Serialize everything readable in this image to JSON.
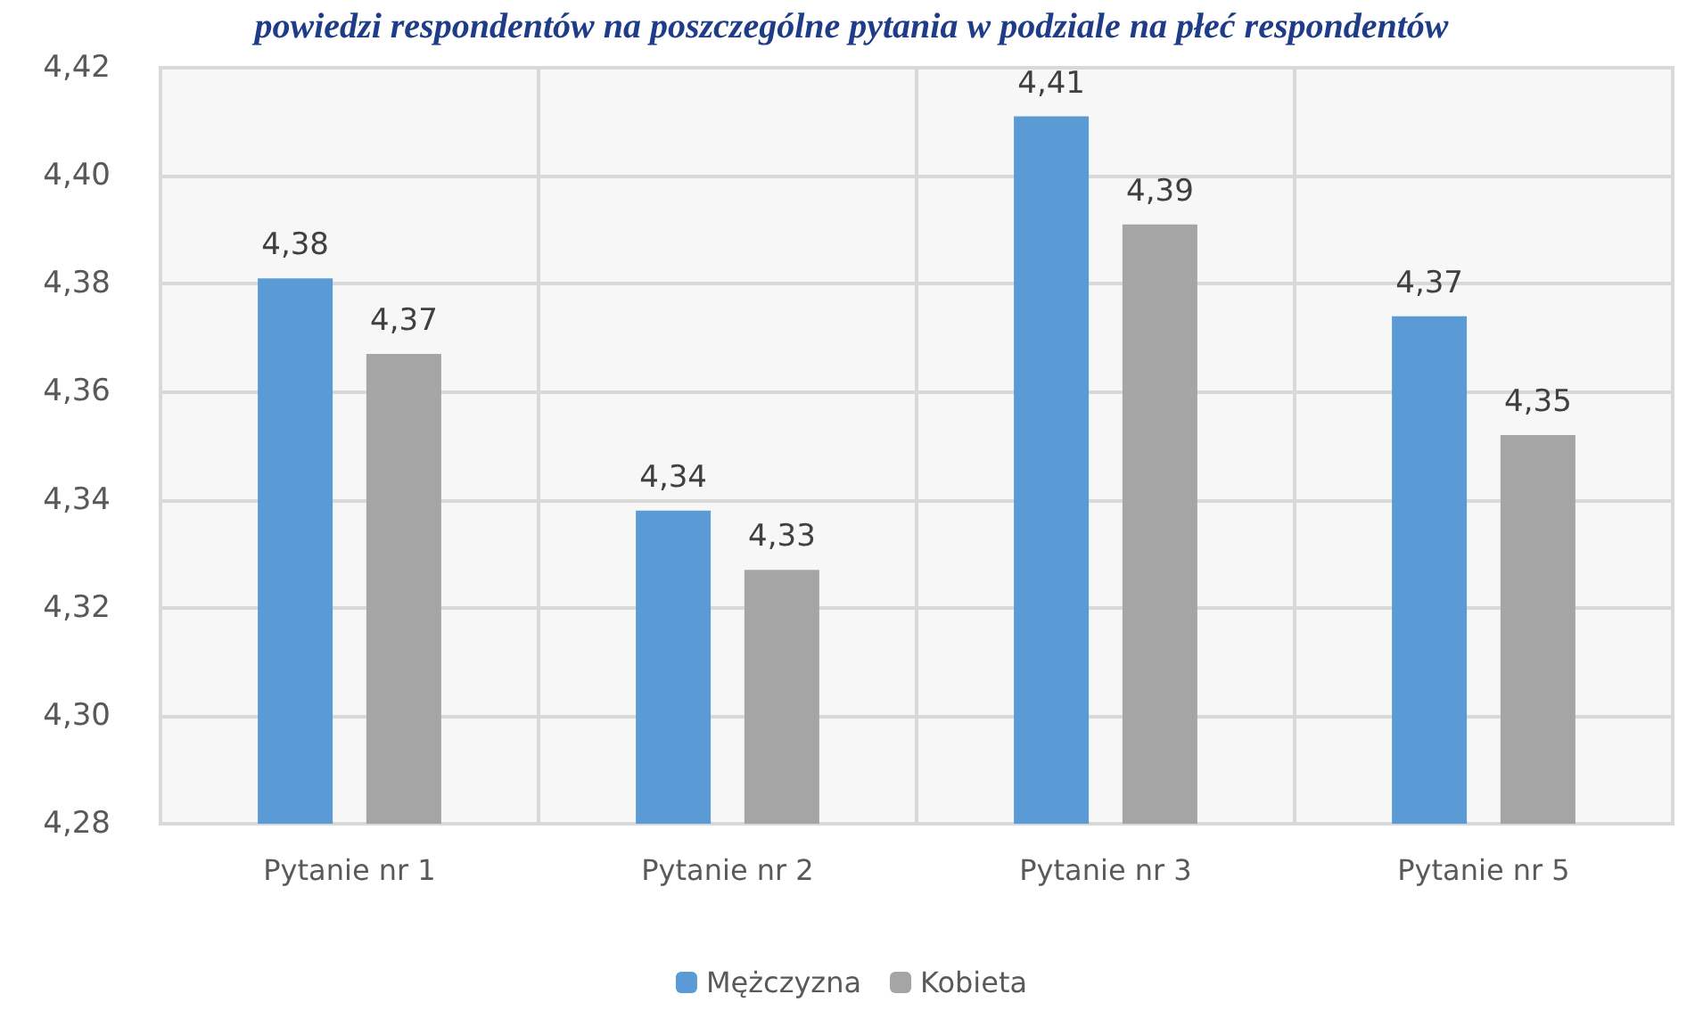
{
  "chart_data": {
    "type": "bar",
    "title": "powiedzi respondentów na poszczególne pytania w podziale na płeć respondentów",
    "categories": [
      "Pytanie nr 1",
      "Pytanie nr 2",
      "Pytanie nr 3",
      "Pytanie nr 5"
    ],
    "series": [
      {
        "name": "Mężczyzna",
        "color": "#5b9bd5",
        "values": [
          4.381,
          4.338,
          4.411,
          4.374
        ],
        "value_labels": [
          "4,38",
          "4,34",
          "4,41",
          "4,37"
        ]
      },
      {
        "name": "Kobieta",
        "color": "#a5a5a5",
        "values": [
          4.367,
          4.327,
          4.391,
          4.352
        ],
        "value_labels": [
          "4,37",
          "4,33",
          "4,39",
          "4,35"
        ]
      }
    ],
    "ylim": [
      4.28,
      4.42
    ],
    "yticks": [
      {
        "value": 4.28,
        "label": "4,28"
      },
      {
        "value": 4.3,
        "label": "4,30"
      },
      {
        "value": 4.32,
        "label": "4,32"
      },
      {
        "value": 4.34,
        "label": "4,34"
      },
      {
        "value": 4.36,
        "label": "4,36"
      },
      {
        "value": 4.38,
        "label": "4,38"
      },
      {
        "value": 4.4,
        "label": "4,40"
      },
      {
        "value": 4.42,
        "label": "4,42"
      }
    ],
    "grid": true,
    "legend": "bottom"
  }
}
